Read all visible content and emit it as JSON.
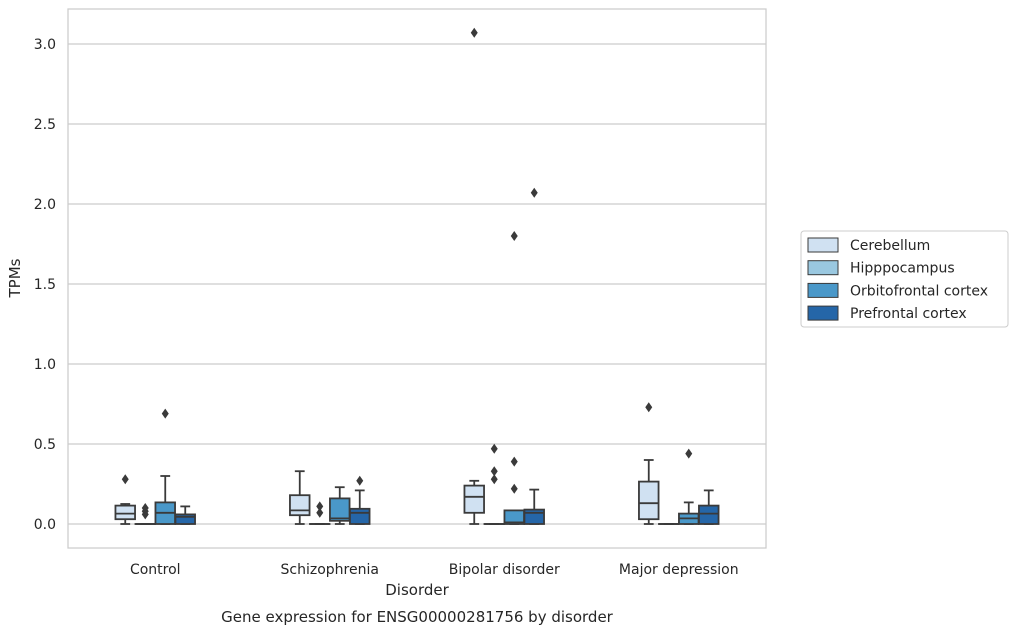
{
  "chart_data": {
    "type": "boxplot",
    "title": "Gene expression for ENSG00000281756 by disorder",
    "xlabel": "Disorder",
    "ylabel": "TPMs",
    "ylim": [
      -0.15,
      3.23
    ],
    "yticks": [
      "0.0",
      "0.5",
      "1.0",
      "1.5",
      "2.0",
      "2.5",
      "3.0"
    ],
    "categories": [
      "Control",
      "Schizophrenia",
      "Bipolar disorder",
      "Major depression"
    ],
    "grid": true,
    "legend_position": "right",
    "series": [
      {
        "name": "Cerebellum",
        "color": "#d0e1f2",
        "boxes": [
          {
            "whislo": 0.0,
            "q1": 0.03,
            "med": 0.065,
            "q3": 0.115,
            "whishi": 0.125,
            "fliers": [
              0.28
            ]
          },
          {
            "whislo": 0.0,
            "q1": 0.055,
            "med": 0.085,
            "q3": 0.18,
            "whishi": 0.33,
            "fliers": []
          },
          {
            "whislo": 0.0,
            "q1": 0.07,
            "med": 0.17,
            "q3": 0.24,
            "whishi": 0.27,
            "fliers": [
              3.07
            ]
          },
          {
            "whislo": 0.0,
            "q1": 0.03,
            "med": 0.13,
            "q3": 0.265,
            "whishi": 0.4,
            "fliers": [
              0.73
            ]
          }
        ]
      },
      {
        "name": "Hipppocampus",
        "color": "#9ac8e0",
        "boxes": [
          {
            "whislo": 0.0,
            "q1": 0.0,
            "med": 0.0,
            "q3": 0.0,
            "whishi": 0.0,
            "fliers": [
              0.06,
              0.08,
              0.1
            ]
          },
          {
            "whislo": 0.0,
            "q1": 0.0,
            "med": 0.0,
            "q3": 0.0,
            "whishi": 0.0,
            "fliers": [
              0.07,
              0.11
            ]
          },
          {
            "whislo": 0.0,
            "q1": 0.0,
            "med": 0.0,
            "q3": 0.0,
            "whishi": 0.0,
            "fliers": [
              0.28,
              0.33,
              0.47
            ]
          },
          {
            "whislo": 0.0,
            "q1": 0.0,
            "med": 0.0,
            "q3": 0.0,
            "whishi": 0.0,
            "fliers": []
          }
        ]
      },
      {
        "name": "Orbitofrontal cortex",
        "color": "#4a98c9",
        "boxes": [
          {
            "whislo": 0.0,
            "q1": 0.0,
            "med": 0.07,
            "q3": 0.135,
            "whishi": 0.3,
            "fliers": [
              0.69
            ]
          },
          {
            "whislo": 0.0,
            "q1": 0.02,
            "med": 0.035,
            "q3": 0.16,
            "whishi": 0.23,
            "fliers": []
          },
          {
            "whislo": 0.0,
            "q1": 0.0,
            "med": 0.01,
            "q3": 0.085,
            "whishi": 0.085,
            "fliers": [
              0.22,
              0.39,
              1.8
            ]
          },
          {
            "whislo": 0.0,
            "q1": 0.0,
            "med": 0.035,
            "q3": 0.065,
            "whishi": 0.135,
            "fliers": [
              0.44
            ]
          }
        ]
      },
      {
        "name": "Prefrontal cortex",
        "color": "#2566a8",
        "boxes": [
          {
            "whislo": 0.0,
            "q1": 0.0,
            "med": 0.045,
            "q3": 0.06,
            "whishi": 0.11,
            "fliers": []
          },
          {
            "whislo": 0.0,
            "q1": 0.0,
            "med": 0.07,
            "q3": 0.095,
            "whishi": 0.21,
            "fliers": [
              0.27
            ]
          },
          {
            "whislo": 0.0,
            "q1": 0.0,
            "med": 0.07,
            "q3": 0.09,
            "whishi": 0.215,
            "fliers": [
              2.07
            ]
          },
          {
            "whislo": 0.0,
            "q1": 0.0,
            "med": 0.065,
            "q3": 0.115,
            "whishi": 0.21,
            "fliers": []
          }
        ]
      }
    ]
  }
}
